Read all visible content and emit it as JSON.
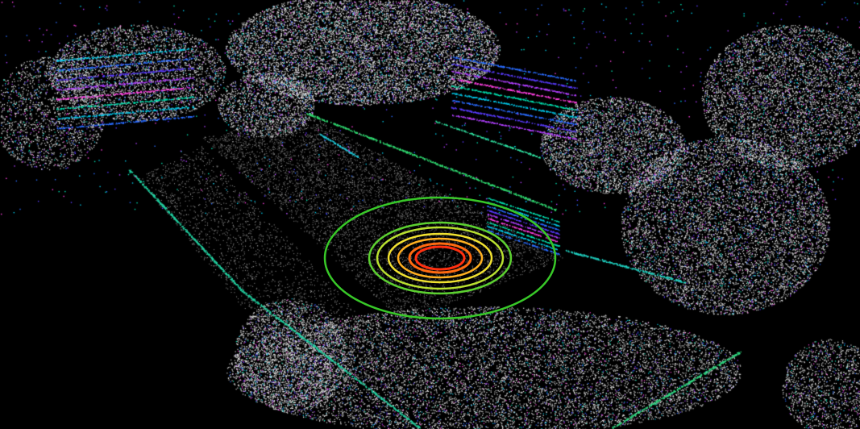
{
  "scene": {
    "kind": "lidar-point-cloud",
    "background_color": "#000000",
    "point_color_default": "#dcdcdc",
    "height_palette": [
      "#00e0b0",
      "#00c8e8",
      "#2a6cff",
      "#5a3cff",
      "#b040ff",
      "#ff40e0"
    ],
    "ring_palette": [
      "#ff3010",
      "#ff6a10",
      "#ffb020",
      "#f0e030",
      "#b8e030",
      "#5cd030",
      "#38c828"
    ]
  }
}
